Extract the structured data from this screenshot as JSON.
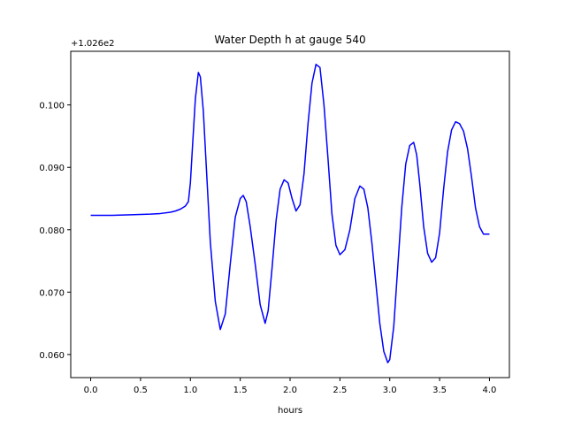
{
  "chart_data": {
    "type": "line",
    "title": "Water Depth h at gauge 540",
    "xlabel": "hours",
    "ylabel": "",
    "y_offset_label": "+1.026e2",
    "xlim": [
      -0.2,
      4.2
    ],
    "ylim": [
      0.0563,
      0.1086
    ],
    "grid": false,
    "x_ticks": [
      0.0,
      0.5,
      1.0,
      1.5,
      2.0,
      2.5,
      3.0,
      3.5,
      4.0
    ],
    "x_tick_labels": [
      "0.0",
      "0.5",
      "1.0",
      "1.5",
      "2.0",
      "2.5",
      "3.0",
      "3.5",
      "4.0"
    ],
    "y_ticks": [
      0.06,
      0.07,
      0.08,
      0.09,
      0.1
    ],
    "y_tick_labels": [
      "0.060",
      "0.070",
      "0.080",
      "0.090",
      "0.100"
    ],
    "series": [
      {
        "name": "",
        "color": "#0000ff",
        "x": [
          0.0,
          0.2,
          0.4,
          0.6,
          0.7,
          0.8,
          0.85,
          0.9,
          0.95,
          0.98,
          1.0,
          1.02,
          1.05,
          1.08,
          1.1,
          1.13,
          1.16,
          1.2,
          1.25,
          1.3,
          1.35,
          1.4,
          1.45,
          1.5,
          1.53,
          1.56,
          1.6,
          1.65,
          1.7,
          1.75,
          1.78,
          1.82,
          1.86,
          1.9,
          1.94,
          1.98,
          2.02,
          2.06,
          2.1,
          2.14,
          2.18,
          2.22,
          2.26,
          2.3,
          2.34,
          2.38,
          2.42,
          2.46,
          2.5,
          2.55,
          2.6,
          2.65,
          2.7,
          2.74,
          2.78,
          2.82,
          2.86,
          2.9,
          2.94,
          2.98,
          3.0,
          3.04,
          3.08,
          3.12,
          3.16,
          3.2,
          3.24,
          3.27,
          3.3,
          3.34,
          3.38,
          3.42,
          3.46,
          3.5,
          3.54,
          3.58,
          3.62,
          3.66,
          3.7,
          3.74,
          3.78,
          3.82,
          3.86,
          3.9,
          3.94,
          3.98,
          4.0
        ],
        "y": [
          0.0823,
          0.0823,
          0.0824,
          0.0825,
          0.0826,
          0.0828,
          0.083,
          0.0833,
          0.0838,
          0.0845,
          0.0875,
          0.093,
          0.101,
          0.1052,
          0.1045,
          0.099,
          0.09,
          0.078,
          0.0685,
          0.064,
          0.0665,
          0.0745,
          0.082,
          0.085,
          0.0855,
          0.0845,
          0.0805,
          0.0745,
          0.068,
          0.065,
          0.067,
          0.074,
          0.0815,
          0.0865,
          0.088,
          0.0875,
          0.085,
          0.083,
          0.084,
          0.089,
          0.097,
          0.1035,
          0.1065,
          0.106,
          0.1,
          0.0915,
          0.0825,
          0.0775,
          0.076,
          0.0768,
          0.08,
          0.085,
          0.087,
          0.0865,
          0.0835,
          0.078,
          0.0715,
          0.065,
          0.0605,
          0.0587,
          0.0592,
          0.0645,
          0.074,
          0.0835,
          0.0905,
          0.0935,
          0.094,
          0.092,
          0.0875,
          0.0805,
          0.0762,
          0.0748,
          0.0755,
          0.0795,
          0.0865,
          0.0925,
          0.096,
          0.0973,
          0.097,
          0.0958,
          0.093,
          0.0885,
          0.0835,
          0.0805,
          0.0793,
          0.0793,
          0.0793
        ]
      }
    ]
  }
}
